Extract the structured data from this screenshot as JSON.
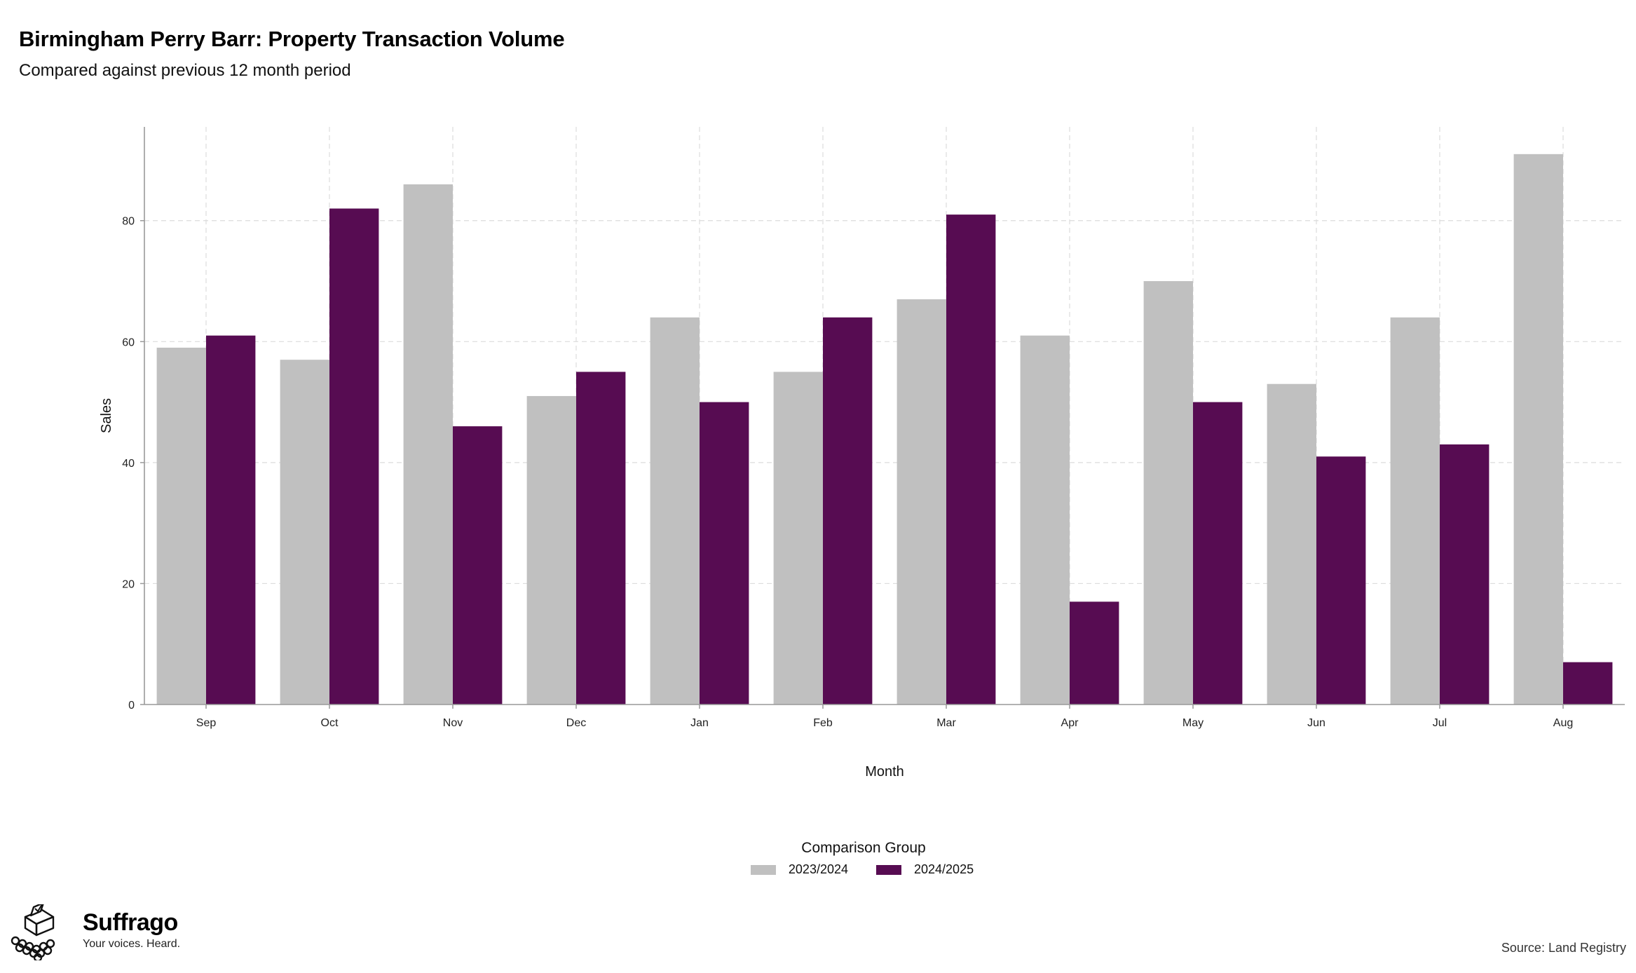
{
  "title": "Birmingham Perry Barr: Property Transaction Volume",
  "subtitle": "Compared against previous 12 month period",
  "chart_data": {
    "type": "bar",
    "categories": [
      "Sep",
      "Oct",
      "Nov",
      "Dec",
      "Jan",
      "Feb",
      "Mar",
      "Apr",
      "May",
      "Jun",
      "Jul",
      "Aug"
    ],
    "series": [
      {
        "name": "2023/2024",
        "color": "#c0c0c0",
        "values": [
          59,
          57,
          86,
          51,
          64,
          55,
          67,
          61,
          70,
          53,
          64,
          91
        ]
      },
      {
        "name": "2024/2025",
        "color": "#570c52",
        "values": [
          61,
          82,
          46,
          55,
          50,
          64,
          81,
          17,
          50,
          41,
          43,
          7
        ]
      }
    ],
    "xlabel": "Month",
    "ylabel": "Sales",
    "ylim": [
      0,
      95.5
    ],
    "yticks": [
      0,
      20,
      40,
      60,
      80
    ],
    "grid": true,
    "legend_title": "Comparison Group",
    "legend_position": "bottom"
  },
  "branding": {
    "name": "Suffrago",
    "tagline": "Your voices. Heard.",
    "icon": "ballot-box-icon"
  },
  "source": "Source: Land Registry"
}
